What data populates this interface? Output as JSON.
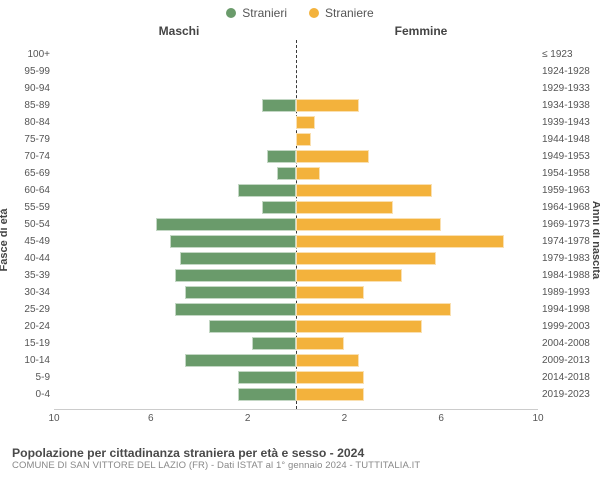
{
  "legend": {
    "male": {
      "label": "Stranieri",
      "color": "#6a9b6b"
    },
    "female": {
      "label": "Straniere",
      "color": "#f3b23c"
    }
  },
  "headers": {
    "left": "Maschi",
    "right": "Femmine"
  },
  "axis": {
    "left_label": "Fasce di età",
    "right_label": "Anni di nascita",
    "x_ticks": [
      10,
      6,
      2,
      2,
      6,
      10
    ],
    "x_max": 10
  },
  "style": {
    "bar_height_pct": 76,
    "background_color": "#ffffff",
    "grid_color": "#cccccc",
    "centerline_color": "#3a3a3a",
    "tick_font_size": 10,
    "header_font_size": 12,
    "axis_label_font_size": 11
  },
  "rows": [
    {
      "age": "100+",
      "birth": "≤ 1923",
      "m": 0.0,
      "f": 0.0
    },
    {
      "age": "95-99",
      "birth": "1924-1928",
      "m": 0.0,
      "f": 0.0
    },
    {
      "age": "90-94",
      "birth": "1929-1933",
      "m": 0.0,
      "f": 0.0
    },
    {
      "age": "85-89",
      "birth": "1934-1938",
      "m": 1.4,
      "f": 2.6
    },
    {
      "age": "80-84",
      "birth": "1939-1943",
      "m": 0.0,
      "f": 0.8
    },
    {
      "age": "75-79",
      "birth": "1944-1948",
      "m": 0.0,
      "f": 0.6
    },
    {
      "age": "70-74",
      "birth": "1949-1953",
      "m": 1.2,
      "f": 3.0
    },
    {
      "age": "65-69",
      "birth": "1954-1958",
      "m": 0.8,
      "f": 1.0
    },
    {
      "age": "60-64",
      "birth": "1959-1963",
      "m": 2.4,
      "f": 5.6
    },
    {
      "age": "55-59",
      "birth": "1964-1968",
      "m": 1.4,
      "f": 4.0
    },
    {
      "age": "50-54",
      "birth": "1969-1973",
      "m": 5.8,
      "f": 6.0
    },
    {
      "age": "45-49",
      "birth": "1974-1978",
      "m": 5.2,
      "f": 8.6
    },
    {
      "age": "40-44",
      "birth": "1979-1983",
      "m": 4.8,
      "f": 5.8
    },
    {
      "age": "35-39",
      "birth": "1984-1988",
      "m": 5.0,
      "f": 4.4
    },
    {
      "age": "30-34",
      "birth": "1989-1993",
      "m": 4.6,
      "f": 2.8
    },
    {
      "age": "25-29",
      "birth": "1994-1998",
      "m": 5.0,
      "f": 6.4
    },
    {
      "age": "20-24",
      "birth": "1999-2003",
      "m": 3.6,
      "f": 5.2
    },
    {
      "age": "15-19",
      "birth": "2004-2008",
      "m": 1.8,
      "f": 2.0
    },
    {
      "age": "10-14",
      "birth": "2009-2013",
      "m": 4.6,
      "f": 2.6
    },
    {
      "age": "5-9",
      "birth": "2014-2018",
      "m": 2.4,
      "f": 2.8
    },
    {
      "age": "0-4",
      "birth": "2019-2023",
      "m": 2.4,
      "f": 2.8
    }
  ],
  "footer": {
    "title": "Popolazione per cittadinanza straniera per età e sesso - 2024",
    "subtitle": "COMUNE DI SAN VITTORE DEL LAZIO (FR) - Dati ISTAT al 1° gennaio 2024 - TUTTITALIA.IT"
  }
}
